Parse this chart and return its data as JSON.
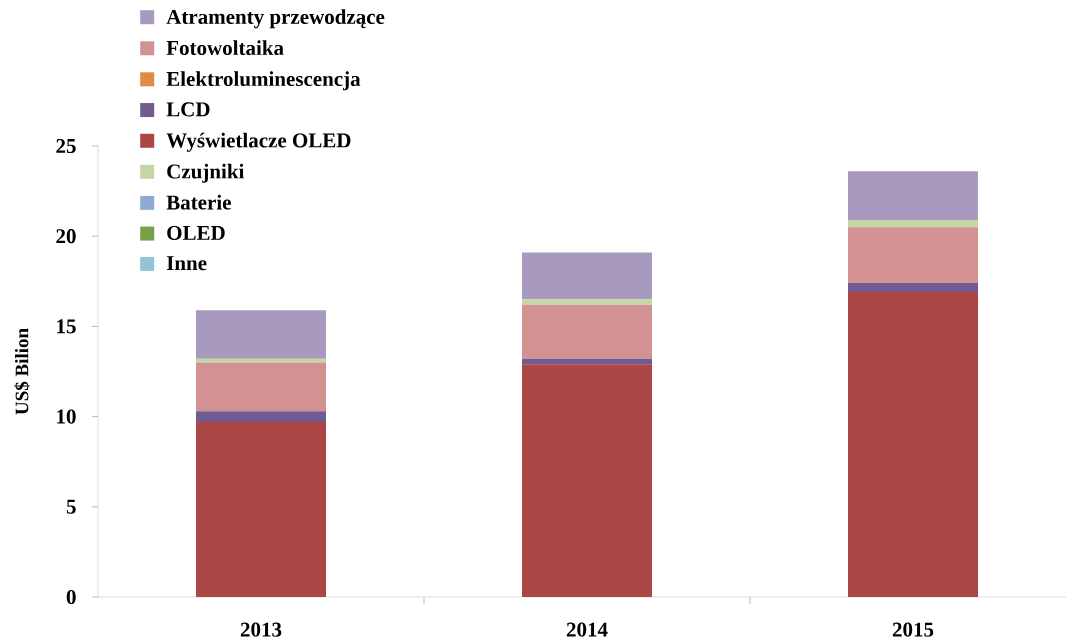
{
  "chart_data": {
    "type": "bar",
    "stacked": true,
    "ylabel": "US$ Bilion",
    "categories": [
      "2013",
      "2014",
      "2015"
    ],
    "series": [
      {
        "name": "Inne",
        "color": "#93c3d4",
        "values": [
          null,
          null,
          null
        ]
      },
      {
        "name": "OLED",
        "color": "#77a04a",
        "values": [
          null,
          null,
          null
        ]
      },
      {
        "name": "Baterie",
        "color": "#8eabd3",
        "values": [
          null,
          null,
          null
        ]
      },
      {
        "name": "Wyświetlacze OLED",
        "color": "#aa4643",
        "values": [
          9.7,
          12.9,
          16.9
        ]
      },
      {
        "name": "LCD",
        "color": "#725b91",
        "values": [
          0.6,
          0.3,
          0.5
        ]
      },
      {
        "name": "Elektroluminescencja",
        "color": "#e08b3e",
        "values": [
          null,
          null,
          null
        ]
      },
      {
        "name": "Fotowoltaika",
        "color": "#d29292",
        "values": [
          2.7,
          3.0,
          3.1
        ]
      },
      {
        "name": "Czujniki",
        "color": "#c4d5a6",
        "values": [
          0.2,
          0.3,
          0.4
        ]
      },
      {
        "name": "Atramenty przewodzące",
        "color": "#a899bf",
        "values": [
          2.7,
          2.6,
          2.7
        ]
      }
    ],
    "ylim": [
      0,
      25
    ],
    "yticks": [
      0,
      5,
      10,
      15,
      20,
      25
    ],
    "legend": "top left",
    "grid": false
  }
}
